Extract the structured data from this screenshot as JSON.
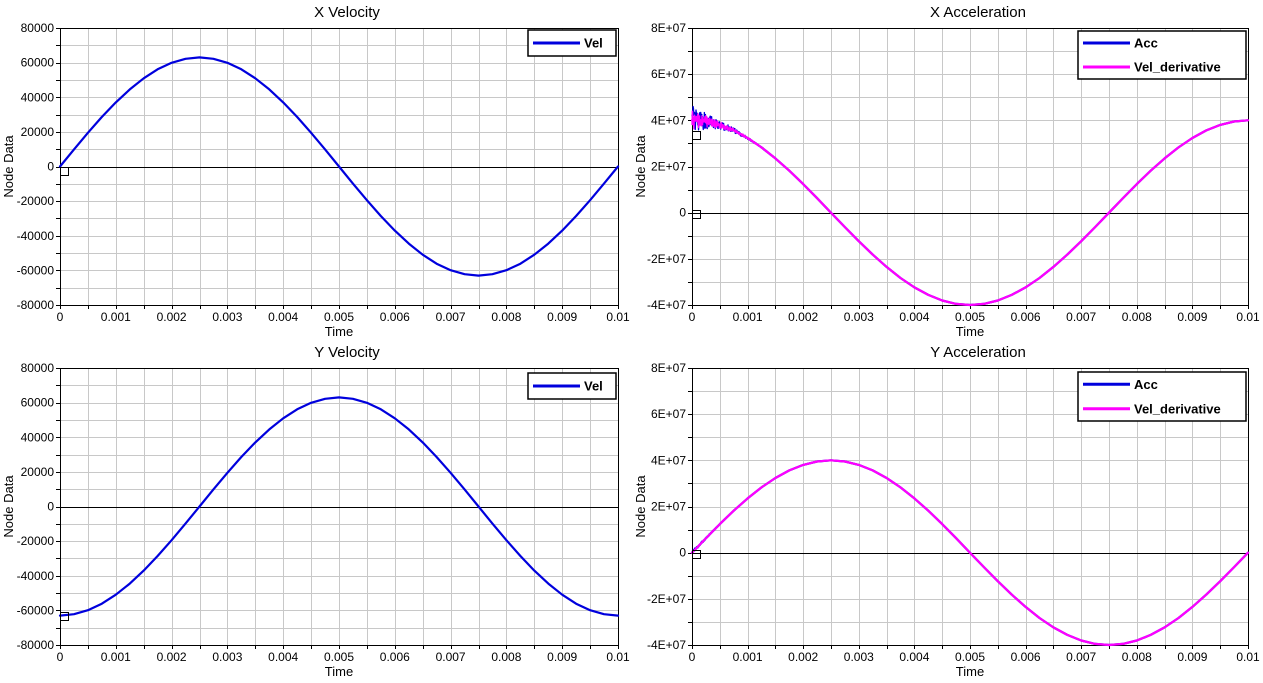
{
  "page": {
    "background": "#ffffff",
    "grid_color": "#c8c8c8",
    "axis_color": "#000000"
  },
  "chart_data": [
    {
      "type": "line",
      "title": "X Velocity",
      "xlabel": "Time",
      "ylabel": "Node Data",
      "xlim": [
        0,
        0.01
      ],
      "ylim": [
        -80000,
        80000
      ],
      "grid": true,
      "legend_position": "top-right",
      "x_ticks": {
        "values": [
          0,
          0.001,
          0.002,
          0.003,
          0.004,
          0.005,
          0.006,
          0.007,
          0.008,
          0.009,
          0.01
        ],
        "labels": [
          "0",
          "0.001",
          "0.002",
          "0.003",
          "0.004",
          "0.005",
          "0.006",
          "0.007",
          "0.008",
          "0.009",
          "0.01"
        ]
      },
      "x_minor_step": 0.0005,
      "y_ticks": {
        "values": [
          80000,
          60000,
          40000,
          20000,
          0,
          -20000,
          -40000,
          -60000,
          -80000
        ],
        "labels": [
          "80000",
          "60000",
          "40000",
          "20000",
          "0",
          "-20000",
          "-40000",
          "-60000",
          "-80000"
        ]
      },
      "y_minor_step": 10000,
      "x": [
        0,
        0.00025,
        0.0005,
        0.00075,
        0.001,
        0.00125,
        0.0015,
        0.00175,
        0.002,
        0.00225,
        0.0025,
        0.00275,
        0.003,
        0.00325,
        0.0035,
        0.00375,
        0.004,
        0.00425,
        0.0045,
        0.00475,
        0.005,
        0.00525,
        0.0055,
        0.00575,
        0.006,
        0.00625,
        0.0065,
        0.00675,
        0.007,
        0.00725,
        0.0075,
        0.00775,
        0.008,
        0.00825,
        0.0085,
        0.00875,
        0.009,
        0.00925,
        0.0095,
        0.00975,
        0.01
      ],
      "series": [
        {
          "name": "Vel",
          "color": "#0000dd",
          "values": [
            0,
            9853,
            19467,
            28602,
            37030,
            44548,
            50967,
            56133,
            59917,
            62225,
            63000,
            62225,
            59917,
            56133,
            50967,
            44548,
            37030,
            28602,
            19467,
            9853,
            0,
            -9853,
            -19467,
            -28602,
            -37030,
            -44548,
            -50967,
            -56133,
            -59917,
            -62225,
            -63000,
            -62225,
            -59917,
            -56133,
            -50967,
            -44548,
            -37030,
            -28602,
            -19467,
            -9853,
            0
          ]
        }
      ],
      "markers": [
        {
          "x": 0,
          "y": -2600
        }
      ]
    },
    {
      "type": "line",
      "title": "X Acceleration",
      "xlabel": "Time",
      "ylabel": "Node Data",
      "xlim": [
        0,
        0.01
      ],
      "ylim": [
        -40000000,
        80000000
      ],
      "grid": true,
      "legend_position": "top-right",
      "x_ticks": {
        "values": [
          0,
          0.001,
          0.002,
          0.003,
          0.004,
          0.005,
          0.006,
          0.007,
          0.008,
          0.009,
          0.01
        ],
        "labels": [
          "0",
          "0.001",
          "0.002",
          "0.003",
          "0.004",
          "0.005",
          "0.006",
          "0.007",
          "0.008",
          "0.009",
          "0.01"
        ]
      },
      "x_minor_step": 0.0005,
      "y_ticks": {
        "values": [
          80000000,
          60000000,
          40000000,
          20000000,
          0,
          -20000000,
          -40000000
        ],
        "labels": [
          "8E+07",
          "6E+07",
          "4E+07",
          "2E+07",
          "0",
          "-2E+07",
          "-4E+07"
        ]
      },
      "y_minor_step": 10000000,
      "x": [
        0,
        0.00025,
        0.0005,
        0.00075,
        0.001,
        0.00125,
        0.0015,
        0.00175,
        0.002,
        0.00225,
        0.0025,
        0.00275,
        0.003,
        0.00325,
        0.0035,
        0.00375,
        0.004,
        0.00425,
        0.0045,
        0.00475,
        0.005,
        0.00525,
        0.0055,
        0.00575,
        0.006,
        0.00625,
        0.0065,
        0.00675,
        0.007,
        0.00725,
        0.0075,
        0.00775,
        0.008,
        0.00825,
        0.0085,
        0.00875,
        0.009,
        0.00925,
        0.0095,
        0.00975,
        0.01
      ],
      "series": [
        {
          "name": "Acc",
          "color": "#0000dd",
          "noise_amplitude": 6500000,
          "noise_decay": 0.00042,
          "noise_until": 0.0017,
          "values": [
            40000000,
            39507000,
            38042000,
            35640000,
            32361000,
            28284000,
            23511000,
            18160000,
            12361000,
            6257000,
            0,
            -6257000,
            -12361000,
            -18160000,
            -23511000,
            -28284000,
            -32361000,
            -35640000,
            -38042000,
            -39507000,
            -40000000,
            -39507000,
            -38042000,
            -35640000,
            -32361000,
            -28284000,
            -23511000,
            -18160000,
            -12361000,
            -6257000,
            0,
            6257000,
            12361000,
            18160000,
            23511000,
            28284000,
            32361000,
            35640000,
            38042000,
            39507000,
            40000000
          ]
        },
        {
          "name": "Vel_derivative",
          "color": "#ff00ff",
          "noise_amplitude": 4300000,
          "noise_decay": 0.00045,
          "noise_until": 0.0015,
          "values": [
            40000000,
            39507000,
            38042000,
            35640000,
            32361000,
            28284000,
            23511000,
            18160000,
            12361000,
            6257000,
            0,
            -6257000,
            -12361000,
            -18160000,
            -23511000,
            -28284000,
            -32361000,
            -35640000,
            -38042000,
            -39507000,
            -40000000,
            -39507000,
            -38042000,
            -35640000,
            -32361000,
            -28284000,
            -23511000,
            -18160000,
            -12361000,
            -6257000,
            0,
            6257000,
            12361000,
            18160000,
            23511000,
            28284000,
            32361000,
            35640000,
            38042000,
            39507000,
            40000000
          ]
        }
      ],
      "markers": [
        {
          "x": 0,
          "y": 33600000
        },
        {
          "x": 0,
          "y": -500000
        }
      ]
    },
    {
      "type": "line",
      "title": "Y Velocity",
      "xlabel": "Time",
      "ylabel": "Node Data",
      "xlim": [
        0,
        0.01
      ],
      "ylim": [
        -80000,
        80000
      ],
      "grid": true,
      "legend_position": "top-right",
      "x_ticks": {
        "values": [
          0,
          0.001,
          0.002,
          0.003,
          0.004,
          0.005,
          0.006,
          0.007,
          0.008,
          0.009,
          0.01
        ],
        "labels": [
          "0",
          "0.001",
          "0.002",
          "0.003",
          "0.004",
          "0.005",
          "0.006",
          "0.007",
          "0.008",
          "0.009",
          "0.01"
        ]
      },
      "x_minor_step": 0.0005,
      "y_ticks": {
        "values": [
          80000,
          60000,
          40000,
          20000,
          0,
          -20000,
          -40000,
          -60000,
          -80000
        ],
        "labels": [
          "80000",
          "60000",
          "40000",
          "20000",
          "0",
          "-20000",
          "-40000",
          "-60000",
          "-80000"
        ]
      },
      "y_minor_step": 10000,
      "x": [
        0,
        0.00025,
        0.0005,
        0.00075,
        0.001,
        0.00125,
        0.0015,
        0.00175,
        0.002,
        0.00225,
        0.0025,
        0.00275,
        0.003,
        0.00325,
        0.0035,
        0.00375,
        0.004,
        0.00425,
        0.0045,
        0.00475,
        0.005,
        0.00525,
        0.0055,
        0.00575,
        0.006,
        0.00625,
        0.0065,
        0.00675,
        0.007,
        0.00725,
        0.0075,
        0.00775,
        0.008,
        0.00825,
        0.0085,
        0.00875,
        0.009,
        0.00925,
        0.0095,
        0.00975,
        0.01
      ],
      "series": [
        {
          "name": "Vel",
          "color": "#0000dd",
          "values": [
            -63000,
            -62225,
            -59917,
            -56133,
            -50967,
            -44548,
            -37030,
            -28602,
            -19467,
            -9853,
            0,
            9853,
            19467,
            28602,
            37030,
            44548,
            50967,
            56133,
            59917,
            62225,
            63000,
            62225,
            59917,
            56133,
            50967,
            44548,
            37030,
            28602,
            19467,
            9853,
            0,
            -9853,
            -19467,
            -28602,
            -37030,
            -44548,
            -50967,
            -56133,
            -59917,
            -62225,
            -63000
          ]
        }
      ],
      "markers": [
        {
          "x": 0,
          "y": -63500
        }
      ]
    },
    {
      "type": "line",
      "title": "Y Acceleration",
      "xlabel": "Time",
      "ylabel": "Node Data",
      "xlim": [
        0,
        0.01
      ],
      "ylim": [
        -40000000,
        80000000
      ],
      "grid": true,
      "legend_position": "top-right",
      "x_ticks": {
        "values": [
          0,
          0.001,
          0.002,
          0.003,
          0.004,
          0.005,
          0.006,
          0.007,
          0.008,
          0.009,
          0.01
        ],
        "labels": [
          "0",
          "0.001",
          "0.002",
          "0.003",
          "0.004",
          "0.005",
          "0.006",
          "0.007",
          "0.008",
          "0.009",
          "0.01"
        ]
      },
      "x_minor_step": 0.0005,
      "y_ticks": {
        "values": [
          80000000,
          60000000,
          40000000,
          20000000,
          0,
          -20000000,
          -40000000
        ],
        "labels": [
          "8E+07",
          "6E+07",
          "4E+07",
          "2E+07",
          "0",
          "-2E+07",
          "-4E+07"
        ]
      },
      "y_minor_step": 10000000,
      "x": [
        0,
        0.00025,
        0.0005,
        0.00075,
        0.001,
        0.00125,
        0.0015,
        0.00175,
        0.002,
        0.00225,
        0.0025,
        0.00275,
        0.003,
        0.00325,
        0.0035,
        0.00375,
        0.004,
        0.00425,
        0.0045,
        0.00475,
        0.005,
        0.00525,
        0.0055,
        0.00575,
        0.006,
        0.00625,
        0.0065,
        0.00675,
        0.007,
        0.00725,
        0.0075,
        0.00775,
        0.008,
        0.00825,
        0.0085,
        0.00875,
        0.009,
        0.00925,
        0.0095,
        0.00975,
        0.01
      ],
      "series": [
        {
          "name": "Acc",
          "color": "#0000dd",
          "noise_amplitude": 800000,
          "noise_decay": 0.0005,
          "noise_until": 0.0013,
          "values": [
            0,
            6257000,
            12361000,
            18160000,
            23511000,
            28284000,
            32361000,
            35640000,
            38042000,
            39507000,
            40000000,
            39507000,
            38042000,
            35640000,
            32361000,
            28284000,
            23511000,
            18160000,
            12361000,
            6257000,
            0,
            -6257000,
            -12361000,
            -18160000,
            -23511000,
            -28284000,
            -32361000,
            -35640000,
            -38042000,
            -39507000,
            -40000000,
            -39507000,
            -38042000,
            -35640000,
            -32361000,
            -28284000,
            -23511000,
            -18160000,
            -12361000,
            -6257000,
            0
          ]
        },
        {
          "name": "Vel_derivative",
          "color": "#ff00ff",
          "values": [
            0,
            6257000,
            12361000,
            18160000,
            23511000,
            28284000,
            32361000,
            35640000,
            38042000,
            39507000,
            40000000,
            39507000,
            38042000,
            35640000,
            32361000,
            28284000,
            23511000,
            18160000,
            12361000,
            6257000,
            0,
            -6257000,
            -12361000,
            -18160000,
            -23511000,
            -28284000,
            -32361000,
            -35640000,
            -38042000,
            -39507000,
            -40000000,
            -39507000,
            -38042000,
            -35640000,
            -32361000,
            -28284000,
            -23511000,
            -18160000,
            -12361000,
            -6257000,
            0
          ]
        }
      ],
      "markers": [
        {
          "x": 0,
          "y": -500000
        }
      ]
    }
  ]
}
